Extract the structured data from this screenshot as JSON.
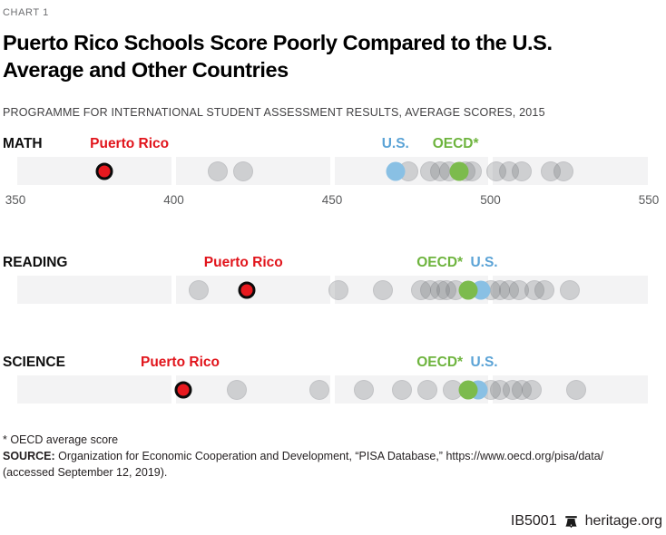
{
  "meta": {
    "kicker": "CHART 1",
    "title": "Puerto Rico Schools Score Poorly Compared to the U.S. Average and Other Countries",
    "subtitle": "PROGRAMME FOR INTERNATIONAL STUDENT ASSESSMENT RESULTS, AVERAGE SCORES, 2015"
  },
  "chart_data": {
    "type": "scatter",
    "note": "PISA 2015 average scores by subject; one dot per country/jurisdiction",
    "axis": {
      "min": 350,
      "max": 550,
      "ticks": [
        350,
        400,
        450,
        500,
        550
      ]
    },
    "legend": {
      "puerto_rico_label": "Puerto Rico",
      "us_label": "U.S.",
      "oecd_label": "OECD*"
    },
    "colors": {
      "puerto_rico": "#e1151c",
      "us_label": "#5ba3d6",
      "oecd_label": "#6eb43e",
      "us_dot": "#89c0e4",
      "oecd_dot": "#7cbb4d",
      "strip_bg": "#f3f3f4"
    },
    "rows": [
      {
        "subject": "MATH",
        "puerto_rico": 378,
        "us": 470,
        "oecd": 490,
        "others": [
          414,
          422,
          474,
          481,
          484,
          487,
          492,
          494,
          502,
          506,
          510,
          519,
          523
        ],
        "labels": [
          {
            "text": "Puerto Rico",
            "color": "puerto_rico",
            "at": 386
          },
          {
            "text": "U.S.",
            "color": "us_label",
            "at": 470
          },
          {
            "text": "OECD*",
            "color": "oecd_label",
            "at": 489
          }
        ],
        "show_axis": true
      },
      {
        "subject": "READING",
        "puerto_rico": 423,
        "us": 497,
        "oecd": 493,
        "others": [
          408,
          452,
          466,
          478,
          481,
          484,
          486,
          489,
          500,
          503,
          506,
          509,
          514,
          517,
          525
        ],
        "labels": [
          {
            "text": "Puerto Rico",
            "color": "puerto_rico",
            "at": 422
          },
          {
            "text": "OECD*",
            "color": "oecd_label",
            "at": 484
          },
          {
            "text": "U.S.",
            "color": "us_label",
            "at": 498
          }
        ],
        "show_axis": false
      },
      {
        "subject": "SCIENCE",
        "puerto_rico": 403,
        "us": 496,
        "oecd": 493,
        "others": [
          420,
          446,
          460,
          472,
          480,
          488,
          500,
          503,
          507,
          510,
          513,
          527
        ],
        "labels": [
          {
            "text": "Puerto Rico",
            "color": "puerto_rico",
            "at": 402
          },
          {
            "text": "OECD*",
            "color": "oecd_label",
            "at": 484
          },
          {
            "text": "U.S.",
            "color": "us_label",
            "at": 498
          }
        ],
        "show_axis": false
      }
    ]
  },
  "footnote": "* OECD average score",
  "source": {
    "label": "SOURCE:",
    "text": " Organization for Economic Cooperation and Development, “PISA Database,” https://www.oecd.org/pisa/data/ (accessed September 12, 2019)."
  },
  "footer": {
    "id": "IB5001",
    "site": "heritage.org",
    "bell_icon": "heritage-bell"
  }
}
